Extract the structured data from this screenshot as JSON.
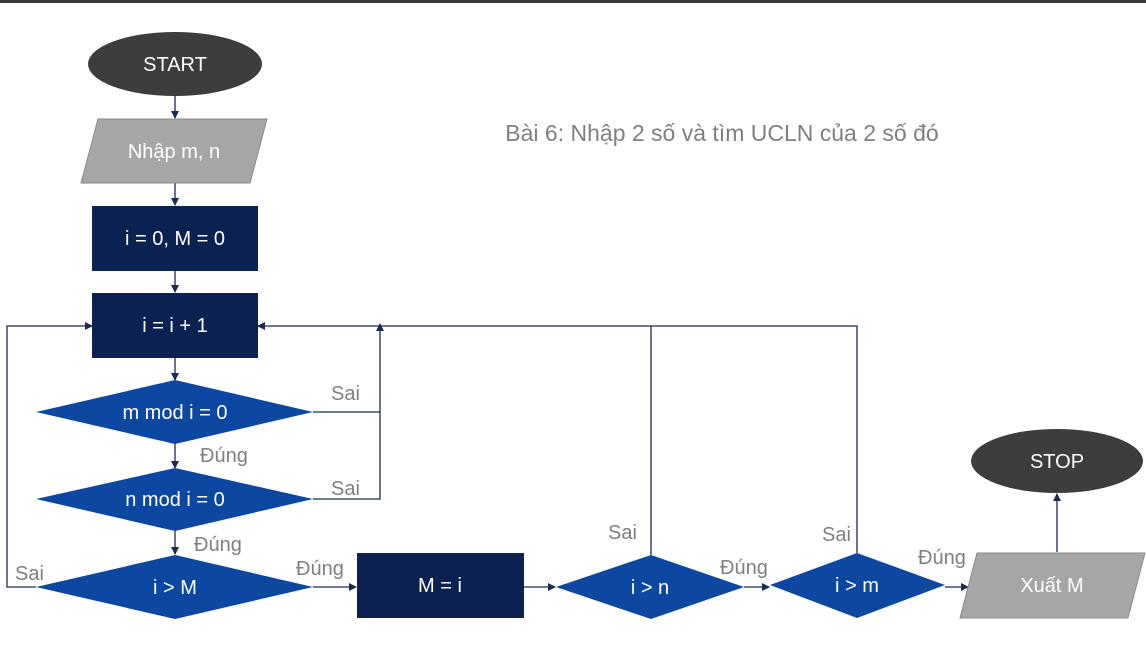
{
  "title": "Bài 6: Nhập 2 số và tìm UCLN của 2 số đó",
  "colors": {
    "terminal": "#3d3d3d",
    "io": "#a6a6a6",
    "process": "#0b2152",
    "decision": "#0c47a1",
    "label": "#7f7f7f",
    "line": "#1a2a52"
  },
  "nodes": {
    "start": "START",
    "input": "Nhập m, n",
    "init": "i = 0, M = 0",
    "increment": "i = i + 1",
    "check_m": "m mod i = 0",
    "check_n": "n mod i = 0",
    "compare_M": "i > M",
    "assign": "M = i",
    "check_i_n": "i > n",
    "check_i_m": "i > m",
    "output": "Xuất M",
    "stop": "STOP"
  },
  "labels": {
    "check_m_false": "Sai",
    "check_m_true": "Đúng",
    "check_n_false": "Sai",
    "check_n_true": "Đúng",
    "compare_M_false": "Sai",
    "compare_M_true": "Đúng",
    "check_i_n_false": "Sai",
    "check_i_n_true": "Đúng",
    "check_i_m_false": "Sai",
    "check_i_m_true": "Đúng"
  }
}
